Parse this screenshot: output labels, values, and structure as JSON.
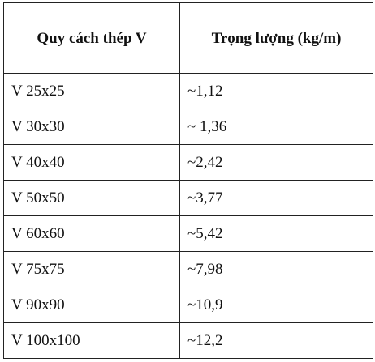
{
  "table": {
    "headers": [
      "Quy cách thép V",
      "Trọng lượng (kg/m)"
    ],
    "rows": [
      [
        "V 25x25",
        "~1,12"
      ],
      [
        "V 30x30",
        "~ 1,36"
      ],
      [
        "V 40x40",
        "~2,42"
      ],
      [
        "V 50x50",
        "~3,77"
      ],
      [
        "V 60x60",
        "~5,42"
      ],
      [
        "V 75x75",
        "~7,98"
      ],
      [
        "V 90x90",
        "~10,9"
      ],
      [
        "V 100x100",
        "~12,2"
      ]
    ]
  }
}
